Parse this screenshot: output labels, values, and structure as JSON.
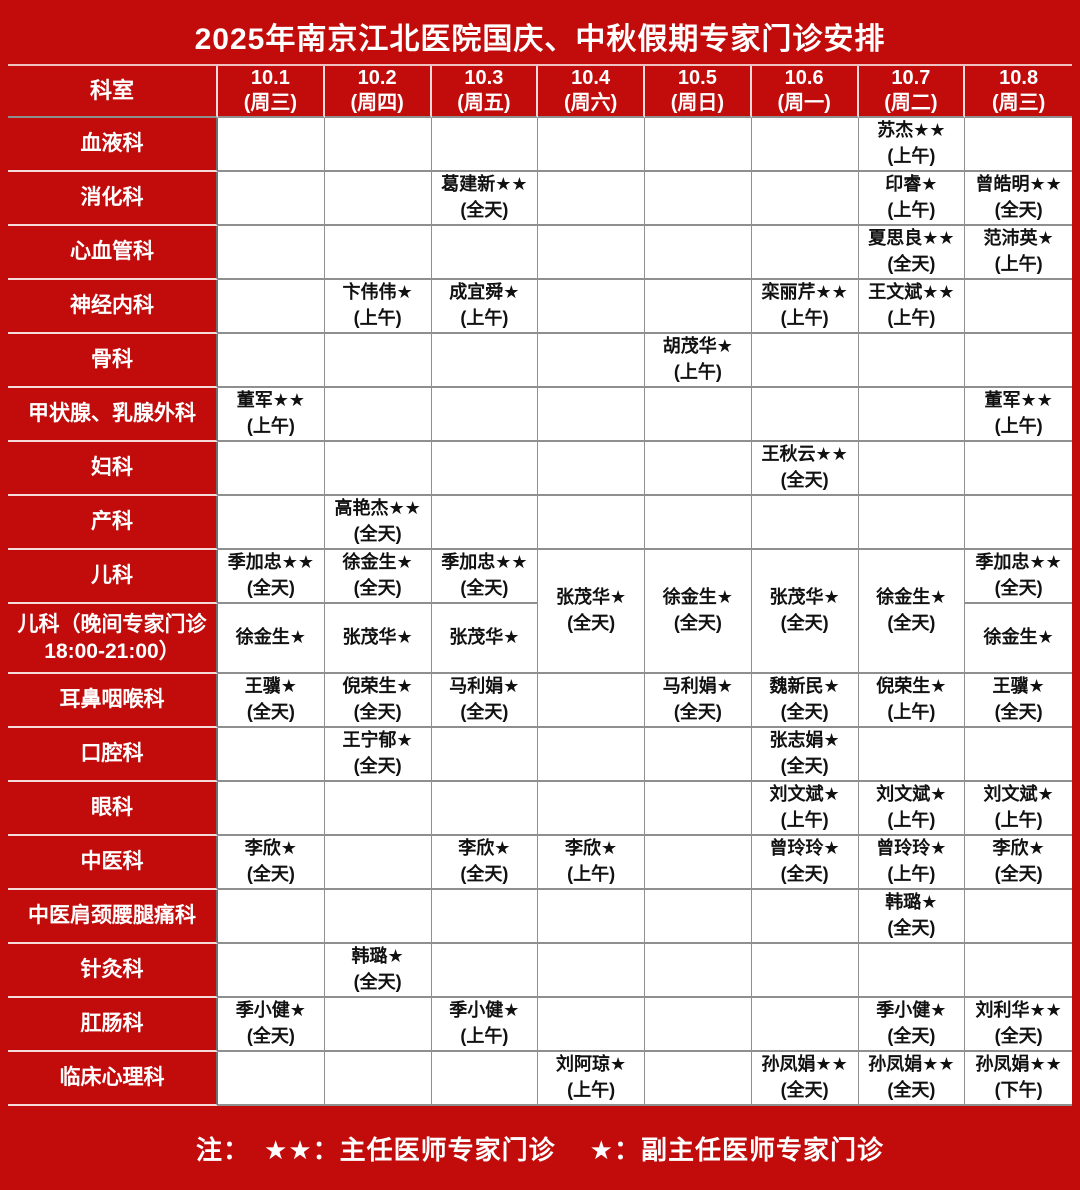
{
  "title": "2025年南京江北医院国庆、中秋假期专家门诊安排",
  "colors": {
    "accent_red": "#c20b0b",
    "grid_line": "#8f8f8f",
    "cell_text": "#111111",
    "header_text": "#ffffff"
  },
  "header": {
    "dept_label": "科室",
    "dates": [
      {
        "date": "10.1",
        "weekday": "(周三)"
      },
      {
        "date": "10.2",
        "weekday": "(周四)"
      },
      {
        "date": "10.3",
        "weekday": "(周五)"
      },
      {
        "date": "10.4",
        "weekday": "(周六)"
      },
      {
        "date": "10.5",
        "weekday": "(周日)"
      },
      {
        "date": "10.6",
        "weekday": "(周一)"
      },
      {
        "date": "10.7",
        "weekday": "(周二)"
      },
      {
        "date": "10.8",
        "weekday": "(周三)"
      }
    ]
  },
  "rows": [
    {
      "dept": "血液科",
      "cells": [
        null,
        null,
        null,
        null,
        null,
        null,
        {
          "name": "苏杰★★",
          "time": "(上午)"
        },
        null
      ]
    },
    {
      "dept": "消化科",
      "cells": [
        null,
        null,
        {
          "name": "葛建新★★",
          "time": "(全天)"
        },
        null,
        null,
        null,
        {
          "name": "印睿★",
          "time": "(上午)"
        },
        {
          "name": "曾皓明★★",
          "time": "(全天)"
        }
      ]
    },
    {
      "dept": "心血管科",
      "cells": [
        null,
        null,
        null,
        null,
        null,
        null,
        {
          "name": "夏思良★★",
          "time": "(全天)"
        },
        {
          "name": "范沛英★",
          "time": "(上午)"
        }
      ]
    },
    {
      "dept": "神经内科",
      "cells": [
        null,
        {
          "name": "卞伟伟★",
          "time": "(上午)"
        },
        {
          "name": "成宜舜★",
          "time": "(上午)"
        },
        null,
        null,
        {
          "name": "栾丽芹★★",
          "time": "(上午)"
        },
        {
          "name": "王文斌★★",
          "time": "(上午)"
        },
        null
      ]
    },
    {
      "dept": "骨科",
      "cells": [
        null,
        null,
        null,
        null,
        {
          "name": "胡茂华★",
          "time": "(上午)"
        },
        null,
        null,
        null
      ]
    },
    {
      "dept": "甲状腺、乳腺外科",
      "cells": [
        {
          "name": "董军★★",
          "time": "(上午)"
        },
        null,
        null,
        null,
        null,
        null,
        null,
        {
          "name": "董军★★",
          "time": "(上午)"
        }
      ]
    },
    {
      "dept": "妇科",
      "cells": [
        null,
        null,
        null,
        null,
        null,
        {
          "name": "王秋云★★",
          "time": "(全天)"
        },
        null,
        null
      ]
    },
    {
      "dept": "产科",
      "cells": [
        null,
        {
          "name": "高艳杰★★",
          "time": "(全天)"
        },
        null,
        null,
        null,
        null,
        null,
        null
      ]
    },
    {
      "dept": "儿科",
      "cells": [
        {
          "name": "季加忠★★",
          "time": "(全天)"
        },
        {
          "name": "徐金生★",
          "time": "(全天)"
        },
        {
          "name": "季加忠★★",
          "time": "(全天)"
        },
        {
          "name": "张茂华★",
          "time": "(全天)",
          "rowspan": 2
        },
        {
          "name": "徐金生★",
          "time": "(全天)",
          "rowspan": 2
        },
        {
          "name": "张茂华★",
          "time": "(全天)",
          "rowspan": 2
        },
        {
          "name": "徐金生★",
          "time": "(全天)",
          "rowspan": 2
        },
        {
          "name": "季加忠★★",
          "time": "(全天)"
        }
      ]
    },
    {
      "dept": "儿科（晚间专家门诊18:00-21:00）",
      "tall": true,
      "cells": [
        {
          "name": "徐金生★"
        },
        {
          "name": "张茂华★"
        },
        {
          "name": "张茂华★"
        },
        "skip",
        "skip",
        "skip",
        "skip",
        {
          "name": "徐金生★"
        }
      ]
    },
    {
      "dept": "耳鼻咽喉科",
      "cells": [
        {
          "name": "王骥★",
          "time": "(全天)"
        },
        {
          "name": "倪荣生★",
          "time": "(全天)"
        },
        {
          "name": "马利娟★",
          "time": "(全天)"
        },
        null,
        {
          "name": "马利娟★",
          "time": "(全天)"
        },
        {
          "name": "魏新民★",
          "time": "(全天)"
        },
        {
          "name": "倪荣生★",
          "time": "(上午)"
        },
        {
          "name": "王骥★",
          "time": "(全天)"
        }
      ]
    },
    {
      "dept": "口腔科",
      "cells": [
        null,
        {
          "name": "王宁郁★",
          "time": "(全天)"
        },
        null,
        null,
        null,
        {
          "name": "张志娟★",
          "time": "(全天)"
        },
        null,
        null
      ]
    },
    {
      "dept": "眼科",
      "cells": [
        null,
        null,
        null,
        null,
        null,
        {
          "name": "刘文斌★",
          "time": "(上午)"
        },
        {
          "name": "刘文斌★",
          "time": "(上午)"
        },
        {
          "name": "刘文斌★",
          "time": "(上午)"
        }
      ]
    },
    {
      "dept": "中医科",
      "cells": [
        {
          "name": "李欣★",
          "time": "(全天)"
        },
        null,
        {
          "name": "李欣★",
          "time": "(全天)"
        },
        {
          "name": "李欣★",
          "time": "(上午)"
        },
        null,
        {
          "name": "曾玲玲★",
          "time": "(全天)"
        },
        {
          "name": "曾玲玲★",
          "time": "(上午)"
        },
        {
          "name": "李欣★",
          "time": "(全天)"
        }
      ]
    },
    {
      "dept": "中医肩颈腰腿痛科",
      "cells": [
        null,
        null,
        null,
        null,
        null,
        null,
        {
          "name": "韩璐★",
          "time": "(全天)"
        },
        null
      ]
    },
    {
      "dept": "针灸科",
      "cells": [
        null,
        {
          "name": "韩璐★",
          "time": "(全天)"
        },
        null,
        null,
        null,
        null,
        null,
        null
      ]
    },
    {
      "dept": "肛肠科",
      "cells": [
        {
          "name": "季小健★",
          "time": "(全天)"
        },
        null,
        {
          "name": "季小健★",
          "time": "(上午)"
        },
        null,
        null,
        null,
        {
          "name": "季小健★",
          "time": "(全天)"
        },
        {
          "name": "刘利华★★",
          "time": "(全天)"
        }
      ]
    },
    {
      "dept": "临床心理科",
      "cells": [
        null,
        null,
        null,
        {
          "name": "刘阿琼★",
          "time": "(上午)"
        },
        null,
        {
          "name": "孙凤娟★★",
          "time": "(全天)"
        },
        {
          "name": "孙凤娟★★",
          "time": "(全天)"
        },
        {
          "name": "孙凤娟★★",
          "time": "(下午)"
        }
      ]
    }
  ],
  "note": {
    "prefix": "注：",
    "items": [
      "★★：主任医师专家门诊",
      "★：副主任医师专家门诊"
    ]
  }
}
